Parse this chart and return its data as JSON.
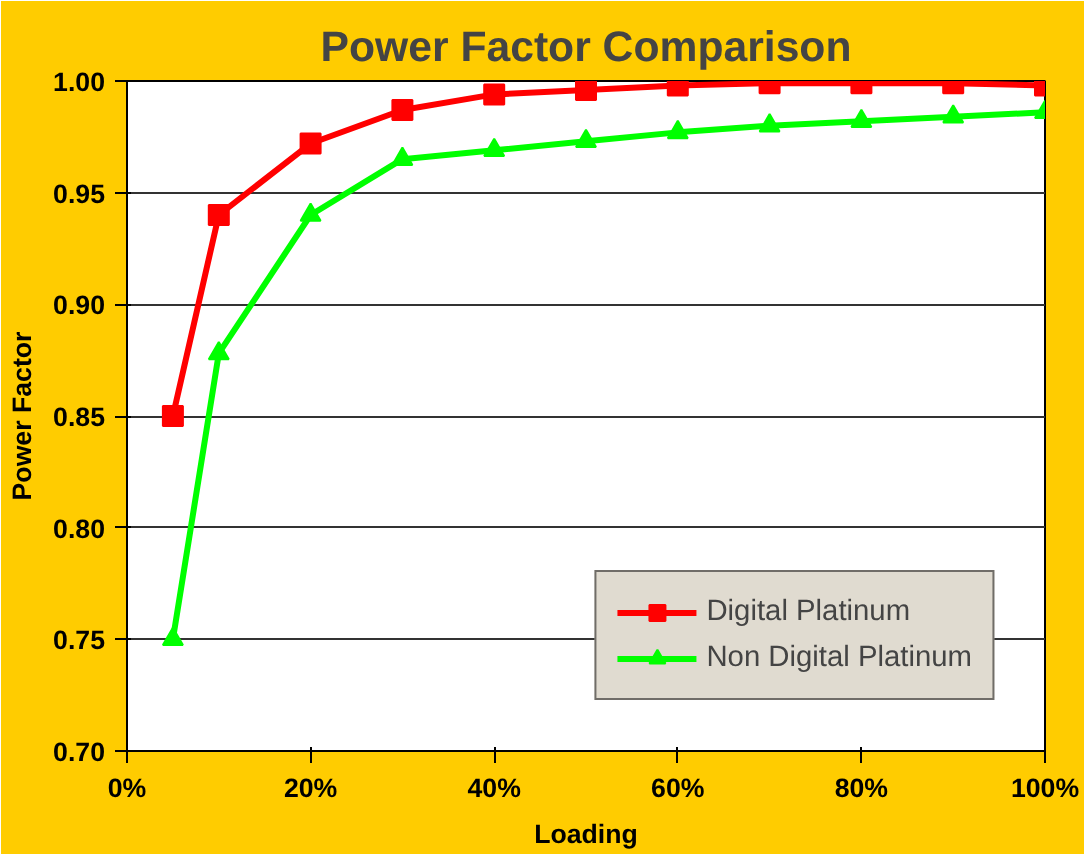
{
  "chart_data": {
    "type": "line",
    "title": "Power Factor Comparison",
    "xlabel": "Loading",
    "ylabel": "Power Factor",
    "x": [
      5,
      10,
      20,
      30,
      40,
      50,
      60,
      70,
      80,
      90,
      100
    ],
    "series": [
      {
        "name": "Digital Platinum",
        "color": "#ff0000",
        "marker": "square",
        "values": [
          0.85,
          0.94,
          0.972,
          0.987,
          0.994,
          0.996,
          0.998,
          0.999,
          0.999,
          0.999,
          0.998
        ]
      },
      {
        "name": "Non Digital Platinum",
        "color": "#00ff00",
        "marker": "triangle",
        "values": [
          0.75,
          0.878,
          0.94,
          0.965,
          0.969,
          0.973,
          0.977,
          0.98,
          0.982,
          0.984,
          0.986
        ]
      }
    ],
    "xlim": [
      0,
      100
    ],
    "xticks": [
      {
        "value": 0,
        "label": "0%"
      },
      {
        "value": 20,
        "label": "20%"
      },
      {
        "value": 40,
        "label": "40%"
      },
      {
        "value": 60,
        "label": "60%"
      },
      {
        "value": 80,
        "label": "80%"
      },
      {
        "value": 100,
        "label": "100%"
      }
    ],
    "ylim": [
      0.7,
      1.0
    ],
    "yticks": [
      {
        "value": 0.7,
        "label": "0.70"
      },
      {
        "value": 0.75,
        "label": "0.75"
      },
      {
        "value": 0.8,
        "label": "0.80"
      },
      {
        "value": 0.85,
        "label": "0.85"
      },
      {
        "value": 0.9,
        "label": "0.90"
      },
      {
        "value": 0.95,
        "label": "0.95"
      },
      {
        "value": 1.0,
        "label": "1.00"
      }
    ],
    "grid": "y",
    "legend": "bottom right",
    "line_style": "solid"
  }
}
